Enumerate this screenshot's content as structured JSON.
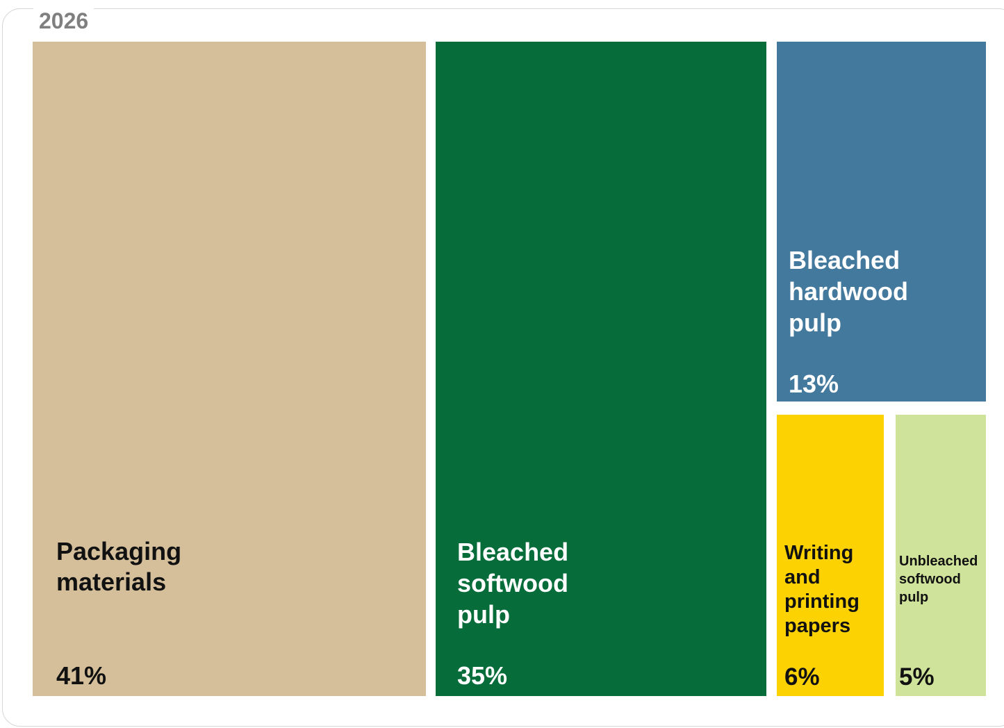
{
  "title": "2026",
  "chart_data": {
    "type": "treemap",
    "title": "2026",
    "items": [
      {
        "label": "Packaging\nmaterials",
        "value": 41,
        "value_label": "41%",
        "color": "#d5bf9a",
        "text_color": "#111111"
      },
      {
        "label": "Bleached\nsoftwood\npulp",
        "value": 35,
        "value_label": "35%",
        "color": "#056c3a",
        "text_color": "#ffffff"
      },
      {
        "label": "Bleached\nhardwood\npulp",
        "value": 13,
        "value_label": "13%",
        "color": "#44799e",
        "text_color": "#ffffff"
      },
      {
        "label": "Writing\nand\nprinting\npapers",
        "value": 6,
        "value_label": "6%",
        "color": "#fdd202",
        "text_color": "#111111"
      },
      {
        "label": "Unbleached\nsoftwood\npulp",
        "value": 5,
        "value_label": "5%",
        "color": "#cfe39a",
        "text_color": "#111111"
      }
    ]
  }
}
